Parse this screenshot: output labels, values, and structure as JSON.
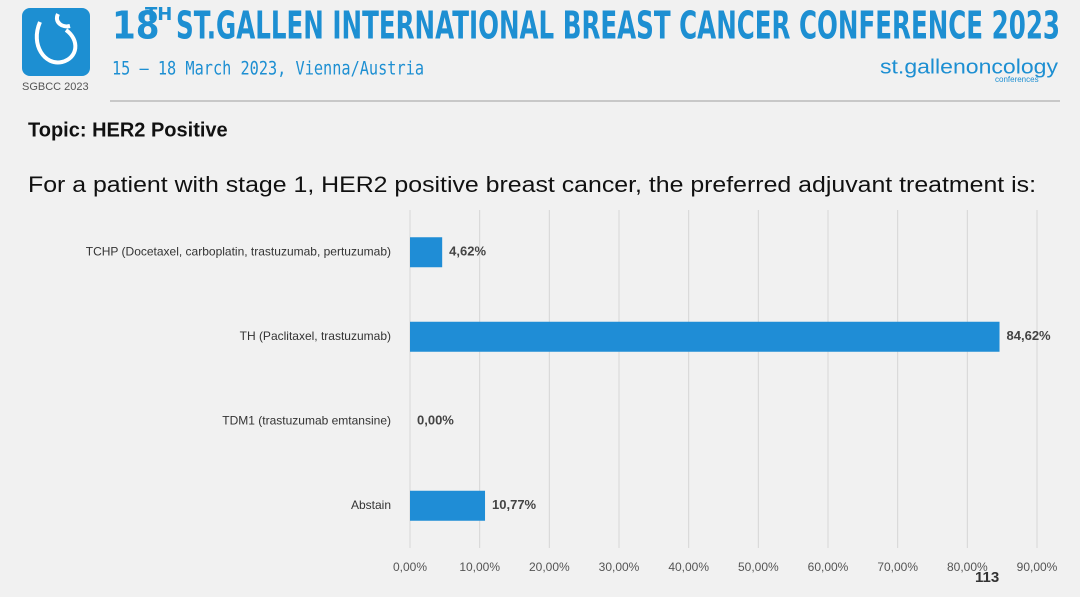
{
  "header": {
    "logo_text": "SGBCC 2023",
    "title_number": "18",
    "title_suffix": "TH",
    "title": "ST.GALLEN INTERNATIONAL BREAST CANCER CONFERENCE 2023",
    "subtitle": "15 – 18 March 2023, Vienna/Austria",
    "brand": "st.gallenoncology",
    "brand_sub": "conferences"
  },
  "topic": "Topic: HER2 Positive",
  "question": "For a patient with stage 1, HER2 positive breast cancer, the preferred adjuvant treatment is:",
  "chart_data": {
    "type": "hbar",
    "categories": [
      "TCHP (Docetaxel, carboplatin, trastuzumab, pertuzumab)",
      "TH (Paclitaxel, trastuzumab)",
      "TDM1 (trastuzumab emtansine)",
      "Abstain"
    ],
    "values": [
      4.62,
      84.62,
      0,
      10.77
    ],
    "value_labels": [
      "4,62%",
      "84,62%",
      "0,00%",
      "10,77%"
    ],
    "color": "#1f8dd6",
    "xlim": [
      0,
      90
    ],
    "xticks": [
      {
        "value": 0,
        "label": "0,00%"
      },
      {
        "value": 10,
        "label": "10,00%"
      },
      {
        "value": 20,
        "label": "20,00%"
      },
      {
        "value": 30,
        "label": "30,00%"
      },
      {
        "value": 40,
        "label": "40,00%"
      },
      {
        "value": 50,
        "label": "50,00%"
      },
      {
        "value": 60,
        "label": "60,00%"
      },
      {
        "value": 70,
        "label": "70,00%"
      },
      {
        "value": 80,
        "label": "80,00%"
      },
      {
        "value": 90,
        "label": "90,00%"
      }
    ],
    "grid": true
  },
  "page_number": "113"
}
